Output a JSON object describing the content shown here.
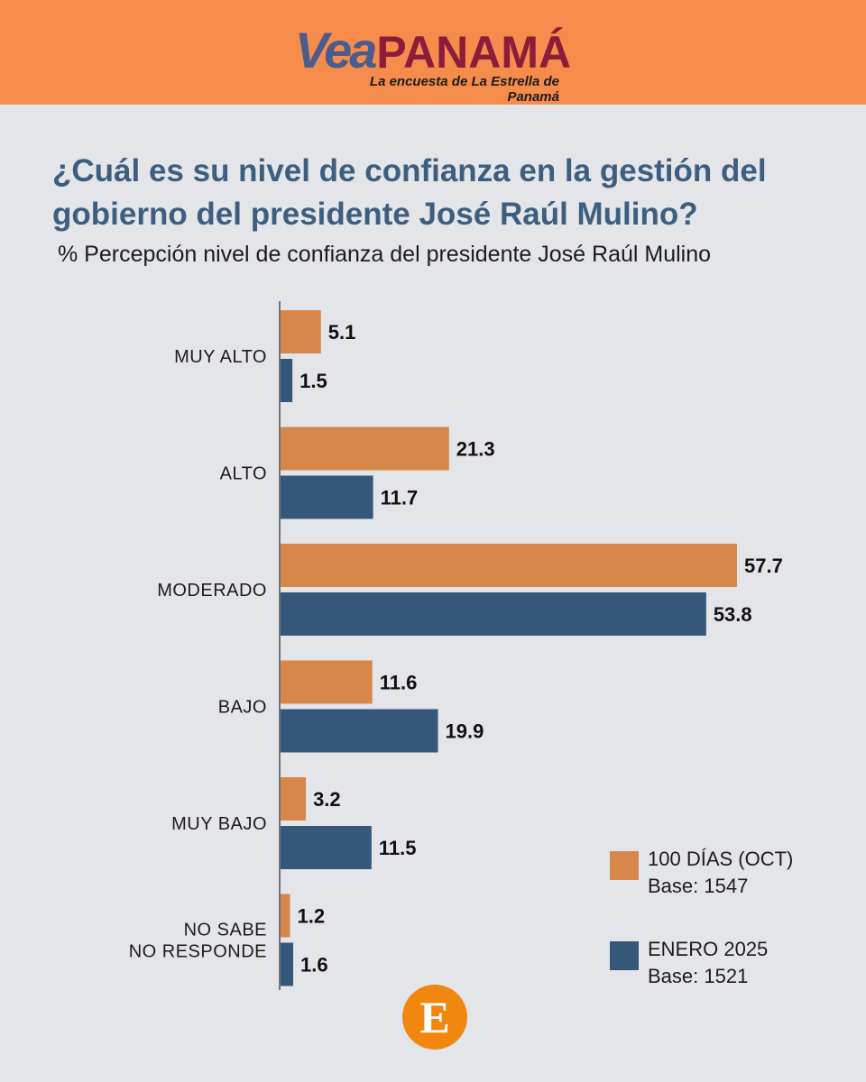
{
  "header": {
    "brand_part1": "Vea",
    "brand_part2": "PANAMÁ",
    "tagline": "La encuesta de La Estrella de Panamá"
  },
  "chart_data": {
    "type": "bar",
    "orientation": "horizontal",
    "title": "¿Cuál es su nivel de confianza en la gestión del gobierno del presidente José Raúl Mulino?",
    "subtitle": "% Percepción nivel de confianza del presidente José Raúl Mulino",
    "categories": [
      "MUY ALTO",
      "ALTO",
      "MODERADO",
      "BAJO",
      "MUY BAJO",
      "NO SABE\nNO RESPONDE"
    ],
    "series": [
      {
        "name": "100 DÍAS (OCT)",
        "base": "Base: 1547",
        "color": "#d8874a",
        "values": [
          5.1,
          21.3,
          57.7,
          11.6,
          3.2,
          1.2
        ]
      },
      {
        "name": "ENERO 2025",
        "base": "Base: 1521",
        "color": "#35577a",
        "values": [
          1.5,
          11.7,
          53.8,
          19.9,
          11.5,
          1.6
        ]
      }
    ],
    "grid": false,
    "legend_position": "bottom-right"
  },
  "footer": {
    "emblem": "E"
  }
}
